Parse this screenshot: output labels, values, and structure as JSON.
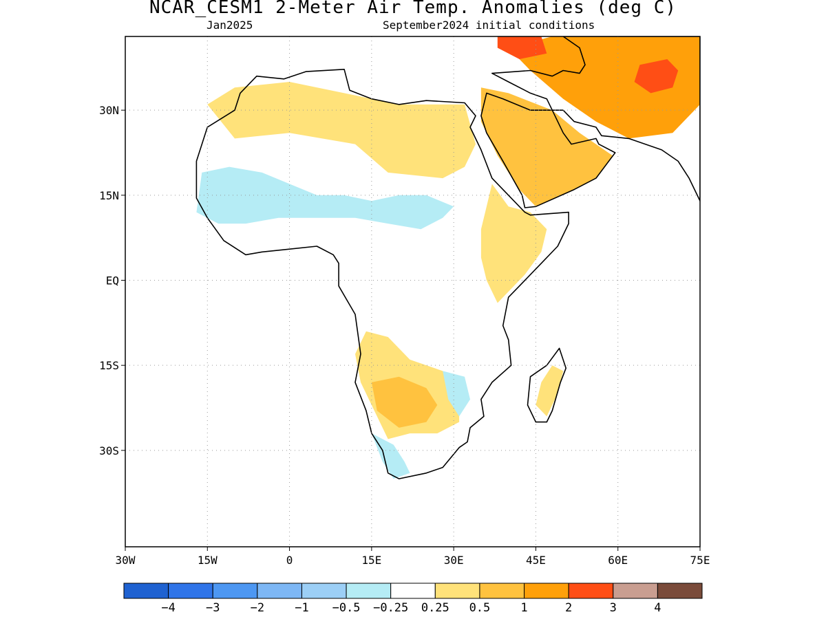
{
  "title": "NCAR_CESM1 2-Meter Air Temp. Anomalies (deg C)",
  "subtitle_left": "Jan2025",
  "subtitle_right": "September2024 initial conditions",
  "map": {
    "lon_range": [
      -30,
      75
    ],
    "lat_range": [
      -47,
      43
    ],
    "lon_ticks": [
      {
        "value": -30,
        "label": "30W"
      },
      {
        "value": -15,
        "label": "15W"
      },
      {
        "value": 0,
        "label": "0"
      },
      {
        "value": 15,
        "label": "15E"
      },
      {
        "value": 30,
        "label": "30E"
      },
      {
        "value": 45,
        "label": "45E"
      },
      {
        "value": 60,
        "label": "60E"
      },
      {
        "value": 75,
        "label": "75E"
      }
    ],
    "lat_ticks": [
      {
        "value": 30,
        "label": "30N"
      },
      {
        "value": 15,
        "label": "15N"
      },
      {
        "value": 0,
        "label": "EQ"
      },
      {
        "value": -15,
        "label": "15S"
      },
      {
        "value": -30,
        "label": "30S"
      }
    ],
    "grid": "dotted"
  },
  "colorbar": {
    "colors": [
      "#1f62d1",
      "#2f74e8",
      "#4d97f2",
      "#7db7f5",
      "#9ccff6",
      "#b5ecf5",
      "#ffffff",
      "#ffe27a",
      "#ffc23f",
      "#ffa00a",
      "#ff4e15",
      "#c99e91",
      "#7a4b3a"
    ],
    "labels": [
      "−4",
      "−3",
      "−2",
      "−1",
      "−0.5",
      "−0.25",
      "0.25",
      "0.5",
      "1",
      "2",
      "3",
      "4"
    ]
  },
  "anomaly_regions": [
    {
      "name": "north-africa-warm",
      "level": 0.5,
      "color": "#ffe27a",
      "lonlat": [
        [
          -15,
          31
        ],
        [
          -10,
          34
        ],
        [
          0,
          35
        ],
        [
          10,
          33
        ],
        [
          20,
          31
        ],
        [
          32,
          31
        ],
        [
          34,
          24
        ],
        [
          32,
          20
        ],
        [
          28,
          18
        ],
        [
          18,
          19
        ],
        [
          12,
          24
        ],
        [
          0,
          26
        ],
        [
          -10,
          25
        ]
      ]
    },
    {
      "name": "west-africa-cool",
      "level": -0.25,
      "color": "#b5ecf5",
      "lonlat": [
        [
          -16,
          19
        ],
        [
          -11,
          20
        ],
        [
          -5,
          19
        ],
        [
          0,
          17
        ],
        [
          5,
          15
        ],
        [
          10,
          15
        ],
        [
          15,
          14
        ],
        [
          20,
          15
        ],
        [
          25,
          15
        ],
        [
          30,
          13
        ],
        [
          28,
          11
        ],
        [
          24,
          9
        ],
        [
          18,
          10
        ],
        [
          12,
          11
        ],
        [
          5,
          11
        ],
        [
          -2,
          11
        ],
        [
          -8,
          10
        ],
        [
          -13,
          10
        ],
        [
          -17,
          12
        ]
      ]
    },
    {
      "name": "east-africa-warm",
      "level": 0.5,
      "color": "#ffe27a",
      "lonlat": [
        [
          37,
          17
        ],
        [
          40,
          13
        ],
        [
          44,
          12
        ],
        [
          47,
          9
        ],
        [
          46,
          5
        ],
        [
          43,
          1
        ],
        [
          40,
          -2
        ],
        [
          38,
          -4
        ],
        [
          36,
          0
        ],
        [
          35,
          4
        ],
        [
          35,
          9
        ],
        [
          36,
          13
        ]
      ]
    },
    {
      "name": "arabia-warm",
      "level": 1,
      "color": "#ffc23f",
      "lonlat": [
        [
          35,
          34
        ],
        [
          40,
          33
        ],
        [
          48,
          30
        ],
        [
          53,
          26
        ],
        [
          56,
          24
        ],
        [
          59,
          22
        ],
        [
          56,
          18
        ],
        [
          52,
          16
        ],
        [
          45,
          13
        ],
        [
          42,
          16
        ],
        [
          38,
          22
        ],
        [
          35,
          28
        ]
      ]
    },
    {
      "name": "central-asia-warm",
      "level": 2,
      "color": "#ffa00a",
      "lonlat": [
        [
          48,
          43
        ],
        [
          75,
          43
        ],
        [
          75,
          31
        ],
        [
          70,
          26
        ],
        [
          62,
          25
        ],
        [
          56,
          28
        ],
        [
          50,
          32
        ],
        [
          44,
          37
        ],
        [
          40,
          41
        ]
      ]
    },
    {
      "name": "hot-spot-afghanistan",
      "level": 3,
      "color": "#ff4e15",
      "lonlat": [
        [
          64,
          38
        ],
        [
          69,
          39
        ],
        [
          71,
          37
        ],
        [
          70,
          34
        ],
        [
          66,
          33
        ],
        [
          63,
          35
        ]
      ]
    },
    {
      "name": "hot-spot-caucasus",
      "level": 3,
      "color": "#ff4e15",
      "lonlat": [
        [
          38,
          43
        ],
        [
          46,
          43
        ],
        [
          47,
          40
        ],
        [
          42,
          39
        ],
        [
          38,
          41
        ]
      ]
    },
    {
      "name": "southern-africa-warm",
      "level": 0.5,
      "color": "#ffe27a",
      "lonlat": [
        [
          14,
          -9
        ],
        [
          18,
          -10
        ],
        [
          22,
          -14
        ],
        [
          28,
          -16
        ],
        [
          31,
          -20
        ],
        [
          31,
          -25
        ],
        [
          27,
          -27
        ],
        [
          22,
          -27
        ],
        [
          18,
          -28
        ],
        [
          16,
          -24
        ],
        [
          13,
          -18
        ],
        [
          12,
          -13
        ]
      ]
    },
    {
      "name": "namibia-warm",
      "level": 1,
      "color": "#ffc23f",
      "lonlat": [
        [
          15,
          -18
        ],
        [
          20,
          -17
        ],
        [
          25,
          -19
        ],
        [
          27,
          -22
        ],
        [
          25,
          -25
        ],
        [
          20,
          -26
        ],
        [
          16,
          -23
        ]
      ]
    },
    {
      "name": "south-africa-cool",
      "level": -0.25,
      "color": "#b5ecf5",
      "lonlat": [
        [
          15,
          -27
        ],
        [
          19,
          -29
        ],
        [
          21,
          -32
        ],
        [
          22,
          -34
        ],
        [
          19,
          -35
        ],
        [
          17,
          -32
        ]
      ]
    },
    {
      "name": "mozambique-cool",
      "level": -0.25,
      "color": "#b5ecf5",
      "lonlat": [
        [
          28,
          -16
        ],
        [
          32,
          -17
        ],
        [
          33,
          -21
        ],
        [
          31,
          -24
        ],
        [
          29,
          -21
        ]
      ]
    },
    {
      "name": "madagascar-warm",
      "level": 0.5,
      "color": "#ffe27a",
      "lonlat": [
        [
          48,
          -15
        ],
        [
          50,
          -16
        ],
        [
          49,
          -20
        ],
        [
          47,
          -24
        ],
        [
          45,
          -22
        ],
        [
          46,
          -18
        ]
      ]
    }
  ],
  "land": {
    "africa": [
      [
        -6,
        36
      ],
      [
        -1,
        35.5
      ],
      [
        3,
        36.8
      ],
      [
        10,
        37.2
      ],
      [
        11,
        33.5
      ],
      [
        15,
        32
      ],
      [
        20,
        31
      ],
      [
        25,
        31.7
      ],
      [
        32,
        31.3
      ],
      [
        34,
        29
      ],
      [
        33,
        27
      ],
      [
        35,
        23
      ],
      [
        37,
        18
      ],
      [
        39,
        16
      ],
      [
        43,
        12
      ],
      [
        44,
        11.5
      ],
      [
        51,
        12
      ],
      [
        51,
        10
      ],
      [
        49,
        6
      ],
      [
        46,
        3
      ],
      [
        42,
        -1
      ],
      [
        40,
        -3
      ],
      [
        39,
        -8
      ],
      [
        40,
        -10.5
      ],
      [
        40.5,
        -15
      ],
      [
        37,
        -18
      ],
      [
        35,
        -21
      ],
      [
        35.5,
        -24
      ],
      [
        33,
        -26
      ],
      [
        32.5,
        -28.5
      ],
      [
        31,
        -29.5
      ],
      [
        28,
        -33
      ],
      [
        25,
        -34
      ],
      [
        20,
        -35
      ],
      [
        18,
        -34
      ],
      [
        17,
        -30
      ],
      [
        15,
        -27
      ],
      [
        14,
        -23
      ],
      [
        12,
        -18
      ],
      [
        13,
        -13
      ],
      [
        12,
        -6
      ],
      [
        9,
        -1
      ],
      [
        9,
        3
      ],
      [
        8,
        4.5
      ],
      [
        5,
        6
      ],
      [
        0,
        5.5
      ],
      [
        -5,
        5
      ],
      [
        -8,
        4.5
      ],
      [
        -12,
        7
      ],
      [
        -15,
        11
      ],
      [
        -17,
        14.5
      ],
      [
        -17,
        21
      ],
      [
        -15,
        27
      ],
      [
        -10,
        30
      ],
      [
        -9,
        33
      ],
      [
        -6,
        36
      ]
    ],
    "arabia": [
      [
        35,
        29
      ],
      [
        36,
        33
      ],
      [
        39,
        32
      ],
      [
        44,
        30
      ],
      [
        48,
        30
      ],
      [
        50,
        26
      ],
      [
        51.5,
        24
      ],
      [
        56,
        25
      ],
      [
        56.5,
        24
      ],
      [
        59.5,
        22.5
      ],
      [
        56,
        18
      ],
      [
        52,
        16
      ],
      [
        45,
        13
      ],
      [
        43,
        12.8
      ],
      [
        42.5,
        15
      ],
      [
        39,
        21
      ],
      [
        36,
        26
      ]
    ],
    "asia": [
      [
        37,
        36.5
      ],
      [
        44,
        37
      ],
      [
        48,
        36
      ],
      [
        50,
        37
      ],
      [
        53,
        36.5
      ],
      [
        54,
        38
      ],
      [
        53,
        41
      ],
      [
        50,
        43
      ],
      [
        75,
        43
      ],
      [
        75,
        14
      ],
      [
        73,
        18
      ],
      [
        71,
        21
      ],
      [
        68,
        23
      ],
      [
        62,
        25
      ],
      [
        57,
        25.5
      ],
      [
        56,
        27
      ],
      [
        52,
        28
      ],
      [
        50,
        30
      ],
      [
        48,
        30
      ],
      [
        47,
        32
      ],
      [
        44,
        33
      ],
      [
        40,
        35
      ]
    ],
    "madagascar": [
      [
        49.3,
        -12
      ],
      [
        50.5,
        -15.5
      ],
      [
        49.5,
        -18
      ],
      [
        48,
        -23
      ],
      [
        47,
        -25
      ],
      [
        45,
        -25
      ],
      [
        43.5,
        -22
      ],
      [
        44,
        -17
      ],
      [
        47,
        -15
      ]
    ]
  }
}
